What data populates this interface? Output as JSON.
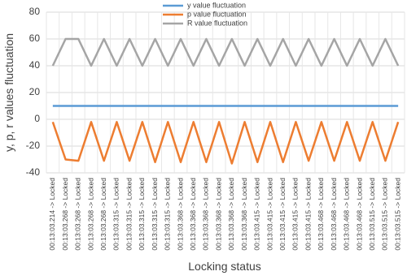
{
  "chart_data": {
    "type": "line",
    "x_label": "Locking status",
    "y_label": "y, p, r values fluctuation",
    "categories": [
      "00:13:03.214 -> Locked",
      "00:13:03.268 -> Locked",
      "00:13:03.268 -> Locked",
      "00:13:03.268 -> Locked",
      "00:13:03.268 -> Locked",
      "00:13:03.315 -> Locked",
      "00:13:03.315 -> Locked",
      "00:13:03.315 -> Locked",
      "00:13:03.315 -> Locked",
      "00:13:03.315 -> Locked",
      "00:13:03.368 -> Locked",
      "00:13:03.368 -> Locked",
      "00:13:03.368 -> Locked",
      "00:13:03.368 -> Locked",
      "00:13:03.368 -> Locked",
      "00:13:03.368 -> Locked",
      "00:13:03.415 -> Locked",
      "00:13:03.415 -> Locked",
      "00:13:03.415 -> Locked",
      "00:13:03.415 -> Locked",
      "00:13:03.415 -> Locked",
      "00:13:03.468 -> Locked",
      "00:13:03.468 -> Locked",
      "00:13:03.468 -> Locked",
      "00:13:03.468 -> Locked",
      "00:13:03.515 -> Locked",
      "00:13:03.515 -> Locked",
      "00:13:03.515 -> Locked"
    ],
    "series": [
      {
        "name": "y value fluctuation",
        "color": "#5b9bd5",
        "values": [
          10,
          10,
          10,
          10,
          10,
          10,
          10,
          10,
          10,
          10,
          10,
          10,
          10,
          10,
          10,
          10,
          10,
          10,
          10,
          10,
          10,
          10,
          10,
          10,
          10,
          10,
          10,
          10
        ]
      },
      {
        "name": "p value fluctuation",
        "color": "#ed7d31",
        "values": [
          -2,
          -30,
          -31,
          -2,
          -31,
          -2,
          -31,
          -2,
          -32,
          -2,
          -32,
          -2,
          -32,
          -2,
          -33,
          -2,
          -32,
          -2,
          -32,
          -2,
          -31,
          -2,
          -31,
          -2,
          -31,
          -2,
          -31,
          -2
        ]
      },
      {
        "name": "R value fluctuation",
        "color": "#a5a5a5",
        "values": [
          40,
          60,
          60,
          40,
          60,
          40,
          60,
          40,
          60,
          40,
          60,
          40,
          60,
          40,
          60,
          40,
          60,
          40,
          60,
          40,
          60,
          40,
          60,
          40,
          60,
          40,
          60,
          40
        ]
      }
    ],
    "ylim": [
      -40,
      80
    ],
    "yticks": [
      -40,
      -20,
      0,
      20,
      40,
      60,
      80
    ],
    "grid": true
  }
}
